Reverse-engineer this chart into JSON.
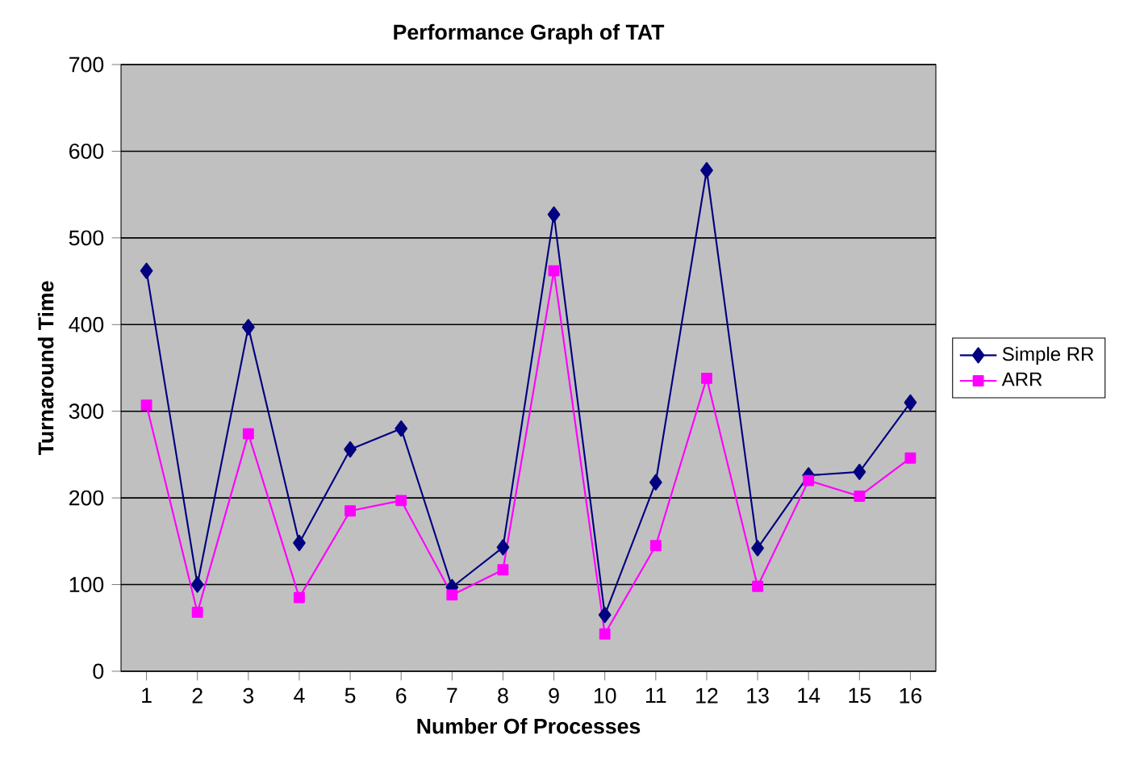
{
  "chart_data": {
    "type": "line",
    "title": "Performance Graph of TAT",
    "xlabel": "Number Of Processes",
    "ylabel": "Turnaround Time",
    "categories": [
      "1",
      "2",
      "3",
      "4",
      "5",
      "6",
      "7",
      "8",
      "9",
      "10",
      "11",
      "12",
      "13",
      "14",
      "15",
      "16"
    ],
    "series": [
      {
        "name": "Simple RR",
        "color": "#000080",
        "marker": "diamond",
        "values": [
          462,
          100,
          397,
          148,
          256,
          280,
          97,
          143,
          527,
          65,
          218,
          578,
          142,
          226,
          230,
          310
        ]
      },
      {
        "name": "ARR",
        "color": "#ff00ff",
        "marker": "square",
        "values": [
          307,
          68,
          274,
          85,
          185,
          197,
          88,
          117,
          462,
          43,
          145,
          338,
          98,
          220,
          202,
          246
        ]
      }
    ],
    "ylim": [
      0,
      700
    ],
    "yticks": [
      0,
      100,
      200,
      300,
      400,
      500,
      600,
      700
    ],
    "grid": "y",
    "legend": "right"
  }
}
